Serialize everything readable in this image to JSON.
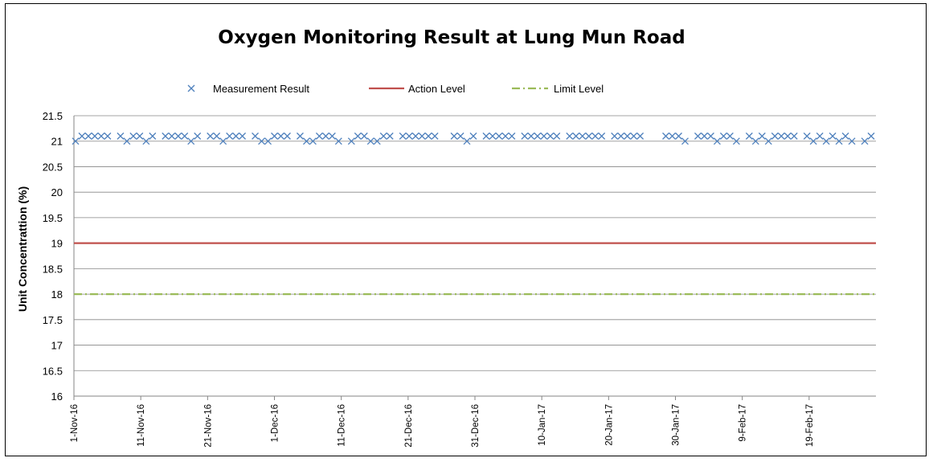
{
  "chart_data": {
    "type": "line",
    "title": "Oxygen Monitoring Result at Lung Mun Road",
    "xlabel": "",
    "ylabel": "Unit Concentrattion (%)",
    "ylim": [
      16,
      21.5
    ],
    "yticks": [
      "16",
      "16.5",
      "17",
      "17.5",
      "18",
      "18.5",
      "19",
      "19.5",
      "20",
      "20.5",
      "21",
      "21.5"
    ],
    "x_start": "1-Nov-16",
    "x_end": "28-Feb-17",
    "xticks": [
      "1-Nov-16",
      "11-Nov-16",
      "21-Nov-16",
      "1-Dec-16",
      "11-Dec-16",
      "21-Dec-16",
      "31-Dec-16",
      "10-Jan-17",
      "20-Jan-17",
      "30-Jan-17",
      "9-Feb-17",
      "19-Feb-17"
    ],
    "grid": "horizontal",
    "legend_position": "top",
    "series": [
      {
        "name": "Measurement Result",
        "style": "x-marker",
        "color": "#4F81BD",
        "values": [
          21.0,
          21.1,
          21.1,
          21.1,
          21.1,
          21.1,
          null,
          21.1,
          21.0,
          21.1,
          21.1,
          21.0,
          21.1,
          null,
          21.1,
          21.1,
          21.1,
          21.1,
          21.0,
          21.1,
          null,
          21.1,
          21.1,
          21.0,
          21.1,
          21.1,
          21.1,
          null,
          21.1,
          21.0,
          21.0,
          21.1,
          21.1,
          21.1,
          null,
          21.1,
          21.0,
          21.0,
          21.1,
          21.1,
          21.1,
          21.0,
          null,
          21.0,
          21.1,
          21.1,
          21.0,
          21.0,
          21.1,
          21.1,
          null,
          21.1,
          21.1,
          21.1,
          21.1,
          21.1,
          21.1,
          null,
          null,
          21.1,
          21.1,
          21.0,
          21.1,
          null,
          21.1,
          21.1,
          21.1,
          21.1,
          21.1,
          null,
          21.1,
          21.1,
          21.1,
          21.1,
          21.1,
          21.1,
          null,
          21.1,
          21.1,
          21.1,
          21.1,
          21.1,
          21.1,
          null,
          21.1,
          21.1,
          21.1,
          21.1,
          21.1,
          null,
          null,
          null,
          21.1,
          21.1,
          21.1,
          21.0,
          null,
          21.1,
          21.1,
          21.1,
          21.0,
          21.1,
          21.1,
          21.0,
          null,
          21.1,
          21.0,
          21.1,
          21.0,
          21.1,
          21.1,
          21.1,
          21.1,
          null,
          21.1,
          21.0,
          21.1,
          21.0,
          21.1,
          21.0,
          21.1,
          21.0,
          null,
          21.0,
          21.1
        ]
      },
      {
        "name": "Action Level",
        "style": "solid",
        "color": "#C0504D",
        "value": 19
      },
      {
        "name": "Limit Level",
        "style": "dash-dot",
        "color": "#9BBB59",
        "value": 18
      }
    ]
  }
}
